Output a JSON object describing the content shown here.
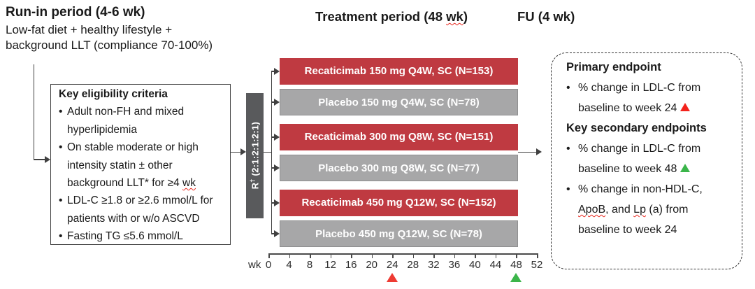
{
  "colors": {
    "active_arm": "#bf3a41",
    "placebo_arm": "#a7a7a8",
    "randomization_bar": "#595a5c",
    "red_marker": "#ee3b33",
    "green_marker": "#3bb54a"
  },
  "header": {
    "run_in_title": "Run-in period (4-6 wk)",
    "run_in_line1": "Low-fat diet + healthy lifestyle +",
    "run_in_line2": "background LLT (compliance 70-100%)",
    "treatment_title_pre": "Treatment period (48 ",
    "treatment_title_wk": "wk",
    "treatment_title_post": ")",
    "fu_title": "FU (4 wk)"
  },
  "eligibility": {
    "title": "Key eligibility criteria",
    "lines": [
      {
        "bullet": "•",
        "text": "Adult non-FH and mixed"
      },
      {
        "bullet": "",
        "text": "hyperlipidemia"
      },
      {
        "bullet": "•",
        "text": "On stable moderate or high"
      },
      {
        "bullet": "",
        "text": "intensity statin ± other"
      },
      {
        "bullet": "",
        "text_pre": "background LLT* for ≥4 ",
        "text_squiggle": "wk"
      },
      {
        "bullet": "•",
        "text": "LDL-C ≥1.8 or ≥2.6 mmol/L for"
      },
      {
        "bullet": "",
        "text": "patients with or w/o ASCVD"
      },
      {
        "bullet": "•",
        "text": "Fasting TG ≤5.6 mmol/L"
      }
    ]
  },
  "randomization": {
    "letter": "R",
    "superscript": "†",
    "ratio": "(2:1:2:1:2:1)"
  },
  "arms": [
    {
      "label": "Recaticimab 150 mg Q4W, SC (N=153)",
      "type": "active",
      "color": "#bf3a41"
    },
    {
      "label": "Placebo 150 mg Q4W, SC (N=78)",
      "type": "placebo",
      "color": "#a7a7a8"
    },
    {
      "label": "Recaticimab 300 mg Q8W, SC (N=151)",
      "type": "active",
      "color": "#bf3a41"
    },
    {
      "label": "Placebo 300 mg Q8W, SC (N=77)",
      "type": "placebo",
      "color": "#a7a7a8"
    },
    {
      "label": "Recaticimab 450 mg Q12W, SC (N=152)",
      "type": "active",
      "color": "#bf3a41"
    },
    {
      "label": "Placebo 450 mg Q12W, SC (N=78)",
      "type": "placebo",
      "color": "#a7a7a8"
    }
  ],
  "axis": {
    "unit": "wk",
    "tick_labels": [
      "0",
      "4",
      "8",
      "12",
      "16",
      "20",
      "24",
      "28",
      "32",
      "36",
      "40",
      "44",
      "48",
      "52"
    ],
    "primary_marker_week": "24",
    "secondary_marker_week": "48"
  },
  "endpoints": {
    "primary_title": "Primary endpoint",
    "primary_b1_line1": "% change in LDL-C from",
    "primary_b1_line2": "baseline to week 24",
    "secondary_title": "Key secondary endpoints",
    "secondary_b1_line1": "% change in LDL-C from",
    "secondary_b1_line2": "baseline to week 48",
    "secondary_b2_line1": "% change in non-HDL-C,",
    "secondary_b2_line2_apob": "ApoB",
    "secondary_b2_line2_and": ", and ",
    "secondary_b2_line2_lp": "Lp",
    "secondary_b2_line2_rest": " (a) from",
    "secondary_b2_line3": "baseline to week 24"
  }
}
